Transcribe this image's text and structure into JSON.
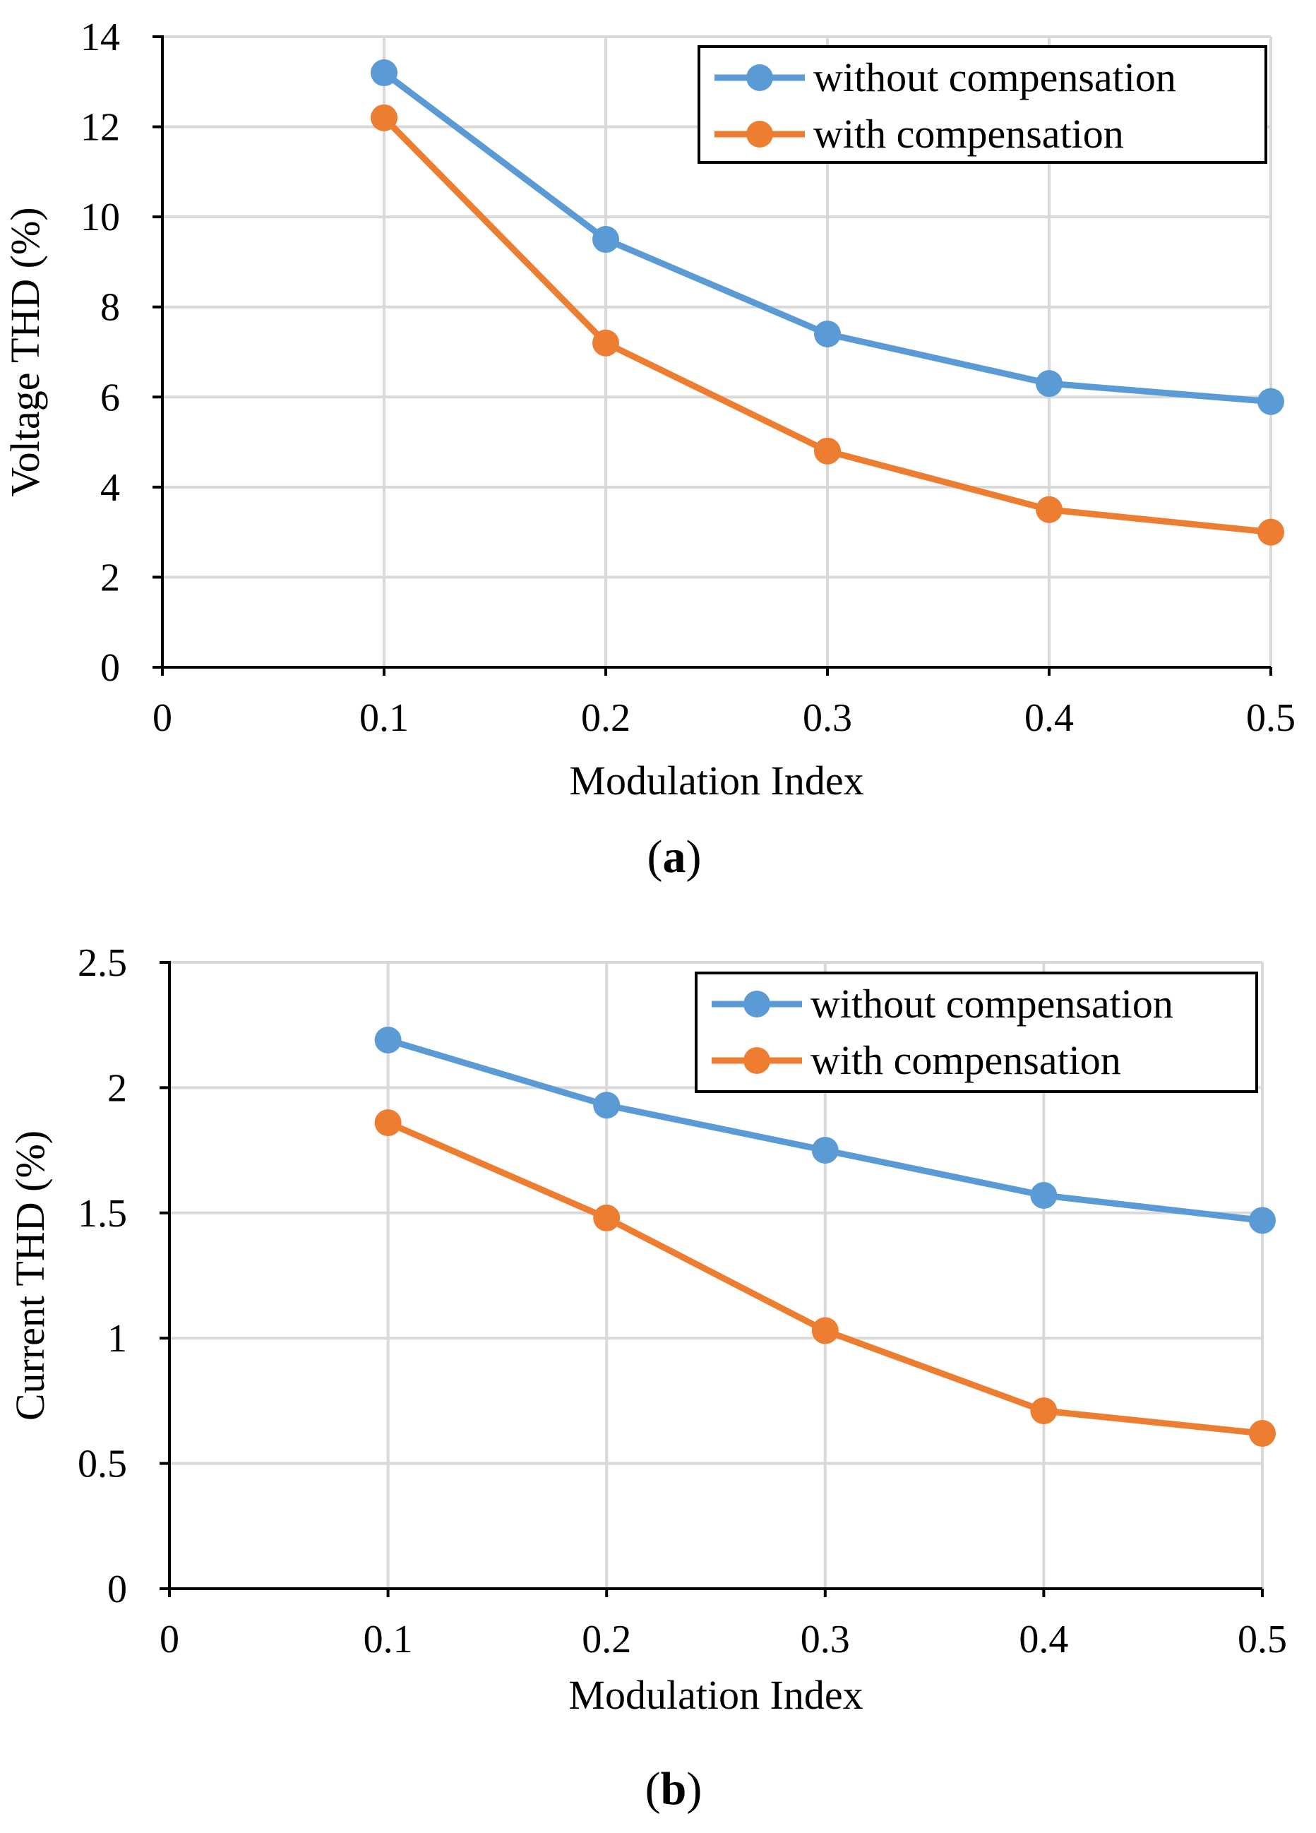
{
  "colors": {
    "series0": "#5b9bd5",
    "series1": "#ed7d31",
    "grid": "#d9d9d9",
    "axis": "#000000"
  },
  "chart_data": [
    {
      "type": "line",
      "panel_label": "a",
      "xlabel": "Modulation Index",
      "ylabel": "Voltage THD (%)",
      "xlim": [
        0,
        0.5
      ],
      "ylim": [
        0,
        14
      ],
      "xticks": [
        0,
        0.1,
        0.2,
        0.3,
        0.4,
        0.5
      ],
      "xtick_labels": [
        "0",
        "0.1",
        "0.2",
        "0.3",
        "0.4",
        "0.5"
      ],
      "yticks": [
        0,
        2,
        4,
        6,
        8,
        10,
        12,
        14
      ],
      "ytick_labels": [
        "0",
        "2",
        "4",
        "6",
        "8",
        "10",
        "12",
        "14"
      ],
      "grid": true,
      "legend_position": "top-right",
      "x": [
        0.1,
        0.2,
        0.3,
        0.4,
        0.5
      ],
      "series": [
        {
          "name": "without compensation",
          "values": [
            13.2,
            9.5,
            7.4,
            6.3,
            5.9
          ]
        },
        {
          "name": "with compensation",
          "values": [
            12.2,
            7.2,
            4.8,
            3.5,
            3.0
          ]
        }
      ]
    },
    {
      "type": "line",
      "panel_label": "b",
      "xlabel": "Modulation Index",
      "ylabel": "Current THD (%)",
      "xlim": [
        0,
        0.5
      ],
      "ylim": [
        0,
        2.5
      ],
      "xticks": [
        0,
        0.1,
        0.2,
        0.3,
        0.4,
        0.5
      ],
      "xtick_labels": [
        "0",
        "0.1",
        "0.2",
        "0.3",
        "0.4",
        "0.5"
      ],
      "yticks": [
        0,
        0.5,
        1,
        1.5,
        2,
        2.5
      ],
      "ytick_labels": [
        "0",
        "0.5",
        "1",
        "1.5",
        "2",
        "2.5"
      ],
      "grid": true,
      "legend_position": "top-right",
      "x": [
        0.1,
        0.2,
        0.3,
        0.4,
        0.5
      ],
      "series": [
        {
          "name": "without compensation",
          "values": [
            2.19,
            1.93,
            1.75,
            1.57,
            1.47
          ]
        },
        {
          "name": "with compensation",
          "values": [
            1.86,
            1.48,
            1.03,
            0.71,
            0.62
          ]
        }
      ]
    }
  ]
}
